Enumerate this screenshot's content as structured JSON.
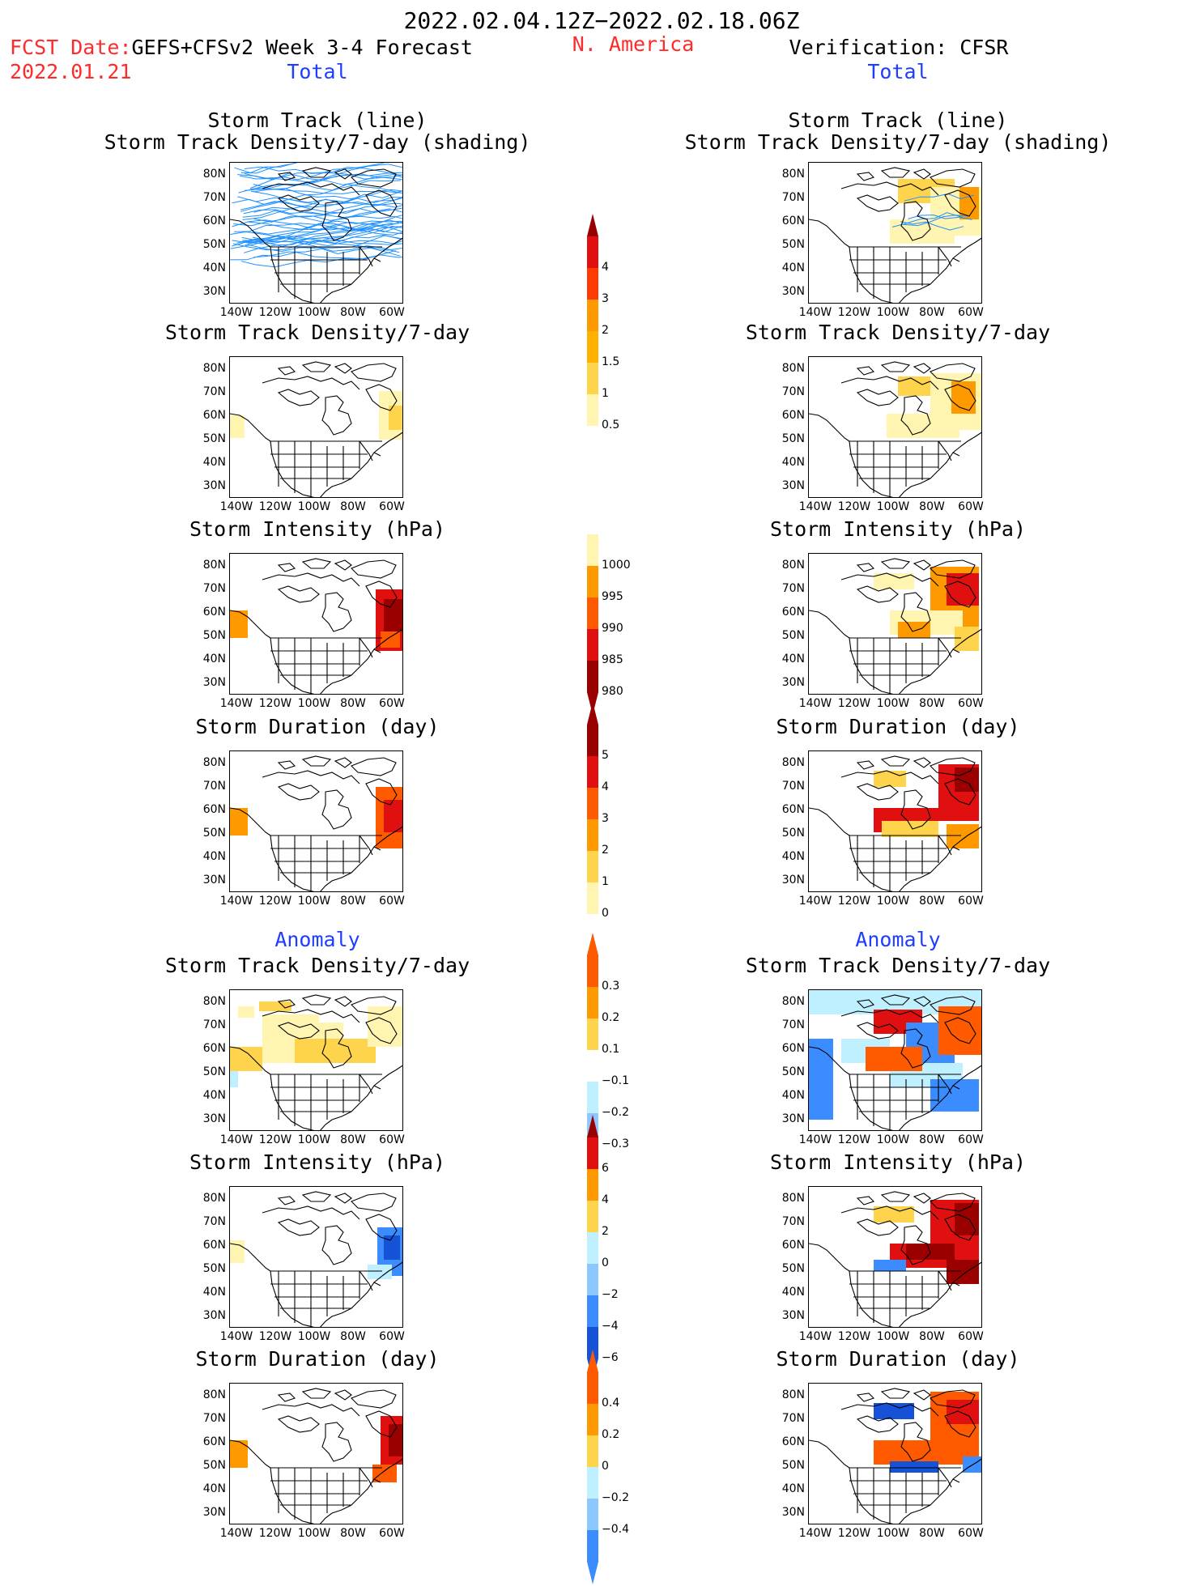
{
  "header": {
    "date_range": "2022.02.04.12Z−2022.02.18.06Z",
    "fcst_date_label": "FCST Date:",
    "forecast_title": "GEFS+CFSv2 Week 3-4 Forecast",
    "fcst_date_value": "2022.01.21",
    "region": "N. America",
    "verification": "Verification: CFSR"
  },
  "sections": {
    "total_left": "Total",
    "total_right": "Total",
    "anomaly_left": "Anomaly",
    "anomaly_right": "Anomaly"
  },
  "panel_titles": {
    "track_line": "Storm Track (line)",
    "track_shading": "Storm Track Density/7-day (shading)",
    "density": "Storm Track Density/7-day",
    "intensity": "Storm Intensity (hPa)",
    "duration": "Storm Duration (day)"
  },
  "axes": {
    "lat_labels": [
      "80N",
      "70N",
      "60N",
      "50N",
      "40N",
      "30N"
    ],
    "lon_labels": [
      "140W",
      "120W",
      "100W",
      "80W",
      "60W"
    ]
  },
  "colorbars": {
    "density_total": [
      "4",
      "3",
      "2",
      "1.5",
      "1",
      "0.5"
    ],
    "intensity_total": [
      "1000",
      "995",
      "990",
      "985",
      "980"
    ],
    "duration_total": [
      "5",
      "4",
      "3",
      "2",
      "1",
      "0"
    ],
    "density_anom": [
      "0.3",
      "0.2",
      "0.1",
      "−0.1",
      "−0.2",
      "−0.3"
    ],
    "intensity_anom": [
      "6",
      "4",
      "2",
      "0",
      "−2",
      "−4",
      "−6"
    ],
    "duration_anom": [
      "0.4",
      "0.2",
      "0",
      "−0.2",
      "−0.4"
    ]
  },
  "colors": {
    "title_red": "#ff2a2a",
    "title_blue": "#1f3dff",
    "track_line": "#1e90ff",
    "shade_yellow_light": "#fff5b0",
    "shade_yellow": "#ffd44d",
    "shade_orange": "#ff9900",
    "shade_orange_red": "#ff5a00",
    "shade_red": "#e01010",
    "shade_dark_red": "#9a0000",
    "shade_cyan_light": "#bff0ff",
    "shade_blue_light": "#8cc8ff",
    "shade_blue": "#3a8cff",
    "shade_blue_dark": "#1552d8"
  }
}
